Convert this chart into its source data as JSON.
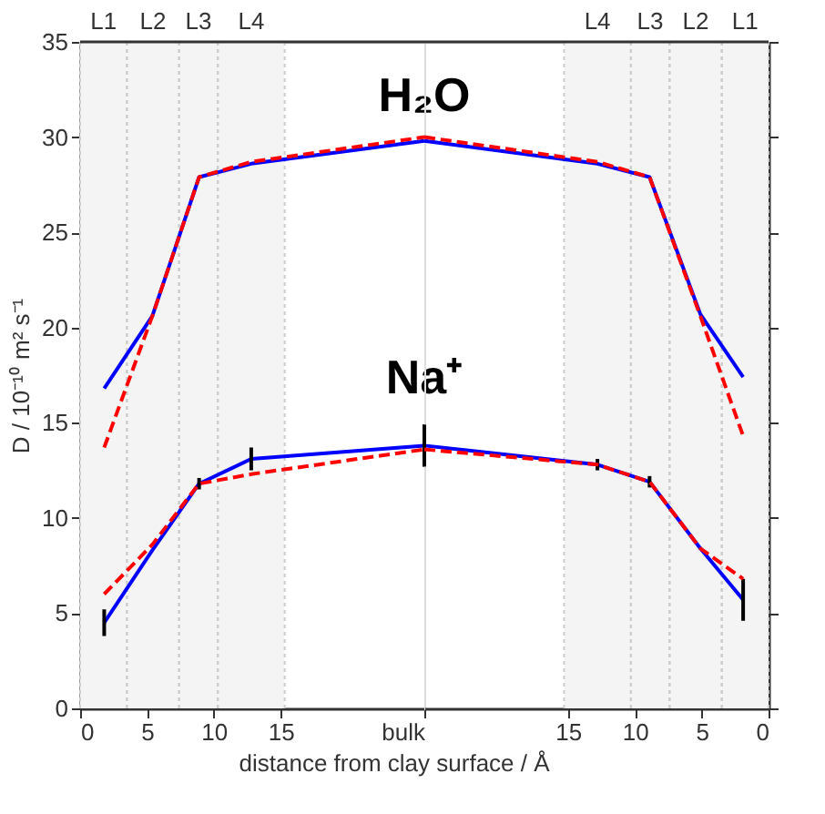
{
  "chart_data": [
    {
      "type": "line",
      "xlabel": "distance from clay surface / Å",
      "ylabel": "D / 10⁻¹⁰ m² s⁻¹",
      "x": [
        1.8,
        5.4,
        8.9,
        12.8,
        25.75
      ],
      "series": [
        {
          "color": "#0000ff",
          "line_style": "solid",
          "values": [
            16.8,
            20.6,
            27.9,
            28.6,
            29.8
          ]
        },
        {
          "color": "#ff0000",
          "line_style": "dashed",
          "values": [
            13.7,
            20.6,
            27.9,
            28.7,
            30.0
          ]
        },
        {
          "color": "#0000ff",
          "line_style": "solid",
          "values": [
            4.5,
            8.3,
            11.8,
            13.1,
            13.8
          ],
          "errors": [
            0.7,
            null,
            0.3,
            0.6,
            1.1
          ]
        },
        {
          "color": "#ff0000",
          "line_style": "dashed",
          "values": [
            6.0,
            8.6,
            11.8,
            12.3,
            13.6
          ]
        }
      ],
      "xlim": [
        0,
        25.75
      ],
      "xticks": [
        0,
        5,
        10,
        15,
        {
          "value": 25.75,
          "label": "bulk"
        }
      ],
      "ylim": [
        0,
        35
      ],
      "yticks": [
        0,
        5,
        10,
        15,
        20,
        25,
        30,
        35
      ],
      "bands": [
        {
          "axis": "x",
          "from": 0,
          "to": 3.5,
          "label": "L1",
          "color": "#f4f4f4"
        },
        {
          "axis": "x",
          "from": 3.5,
          "to": 7.4,
          "label": "L2",
          "color": "#f4f4f4"
        },
        {
          "axis": "x",
          "from": 7.4,
          "to": 10.3,
          "label": "L3",
          "color": "#f4f4f4"
        },
        {
          "axis": "x",
          "from": 10.3,
          "to": 15.3,
          "label": "L4",
          "color": "#f4f4f4"
        }
      ],
      "annotations": [
        "H₂O",
        "Na⁺"
      ],
      "marker": "none",
      "grid": false
    },
    {
      "type": "line",
      "x": [
        25.75,
        12.8,
        8.9,
        5.1,
        1.9
      ],
      "series": [
        {
          "color": "#0000ff",
          "line_style": "solid",
          "values": [
            29.8,
            28.6,
            27.9,
            20.7,
            17.4
          ]
        },
        {
          "color": "#ff0000",
          "line_style": "dashed",
          "values": [
            30.0,
            28.7,
            27.9,
            20.6,
            14.3
          ]
        },
        {
          "color": "#0000ff",
          "line_style": "solid",
          "values": [
            13.8,
            12.8,
            11.9,
            8.4,
            5.7
          ],
          "errors": [
            1.1,
            0.3,
            0.3,
            null,
            1.1
          ]
        },
        {
          "color": "#ff0000",
          "line_style": "dashed",
          "values": [
            13.6,
            12.8,
            11.9,
            8.4,
            6.8
          ]
        }
      ],
      "xlim": [
        25.75,
        0
      ],
      "xticks": [
        15,
        10,
        5,
        0
      ],
      "ylim": [
        0,
        35
      ],
      "yticks": [
        0,
        5,
        10,
        15,
        20,
        25,
        30,
        35
      ],
      "tick_labels": "x",
      "bands": [
        {
          "axis": "x",
          "from": 15.3,
          "to": 10.3,
          "label": "L4",
          "color": "#f4f4f4"
        },
        {
          "axis": "x",
          "from": 10.3,
          "to": 7.4,
          "label": "L3",
          "color": "#f4f4f4"
        },
        {
          "axis": "x",
          "from": 7.4,
          "to": 3.5,
          "label": "L2",
          "color": "#f4f4f4"
        },
        {
          "axis": "x",
          "from": 3.5,
          "to": 0,
          "label": "L1",
          "color": "#f4f4f4"
        }
      ],
      "marker": "none",
      "grid": false
    }
  ]
}
